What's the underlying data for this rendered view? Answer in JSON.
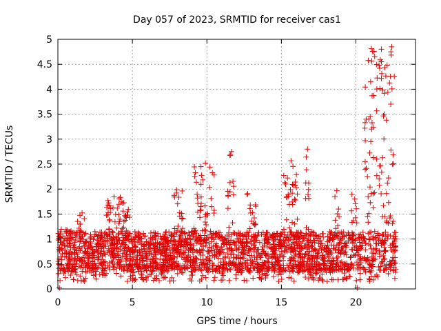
{
  "chart_data": {
    "type": "scatter",
    "title": "Day 057 of 2023, SRMTID for receiver cas1",
    "xlabel": "GPS time / hours",
    "ylabel": "SRMTID / TECUs",
    "xlim": [
      0,
      24
    ],
    "ylim": [
      0,
      5
    ],
    "xticks": [
      0,
      5,
      10,
      15,
      20
    ],
    "xtick_labels": [
      "0",
      "5",
      "10",
      "15",
      "20"
    ],
    "yticks": [
      0,
      0.5,
      1,
      1.5,
      2,
      2.5,
      3,
      3.5,
      4,
      4.5,
      5
    ],
    "ytick_labels": [
      "0",
      "0.5",
      "1",
      "1.5",
      "2",
      "2.5",
      "3",
      "3.5",
      "4",
      "4.5",
      "5"
    ],
    "grid": true,
    "marker": "+",
    "color": "#e00000",
    "series": [
      {
        "name": "cas1",
        "x_range": [
          0,
          22.7
        ],
        "note": "dense scatter of SRMTID samples; values mostly 0.3-1.3 TECU with bursts",
        "bursts": [
          {
            "x": [
              0.2,
              0.9
            ],
            "y_max": 1.2
          },
          {
            "x": [
              1.3,
              1.8
            ],
            "y_max": 1.55
          },
          {
            "x": [
              3.2,
              4.8
            ],
            "y_max": 1.85
          },
          {
            "x": [
              7.8,
              8.4
            ],
            "y_max": 2.1
          },
          {
            "x": [
              9.1,
              10.5
            ],
            "y_max": 2.5
          },
          {
            "x": [
              11.4,
              11.8
            ],
            "y_max": 2.75
          },
          {
            "x": [
              12.7,
              13.3
            ],
            "y_max": 1.95
          },
          {
            "x": [
              15.0,
              16.1
            ],
            "y_max": 2.75
          },
          {
            "x": [
              16.6,
              16.9
            ],
            "y_max": 2.8
          },
          {
            "x": [
              18.5,
              18.9
            ],
            "y_max": 2.05
          },
          {
            "x": [
              19.7,
              20.1
            ],
            "y_max": 1.9
          },
          {
            "x": [
              20.6,
              22.6
            ],
            "y_max": 4.85
          }
        ],
        "highlight_points": [
          {
            "x": 0.1,
            "y": 0.02
          },
          {
            "x": 9.9,
            "y": 2.52
          },
          {
            "x": 11.65,
            "y": 2.75
          },
          {
            "x": 16.75,
            "y": 2.8
          },
          {
            "x": 20.1,
            "y": 0.02
          },
          {
            "x": 21.6,
            "y": 4.42
          },
          {
            "x": 22.4,
            "y": 4.85
          },
          {
            "x": 22.35,
            "y": 4.75
          },
          {
            "x": 21.9,
            "y": 3.92
          },
          {
            "x": 21.0,
            "y": 2.95
          }
        ]
      }
    ]
  }
}
